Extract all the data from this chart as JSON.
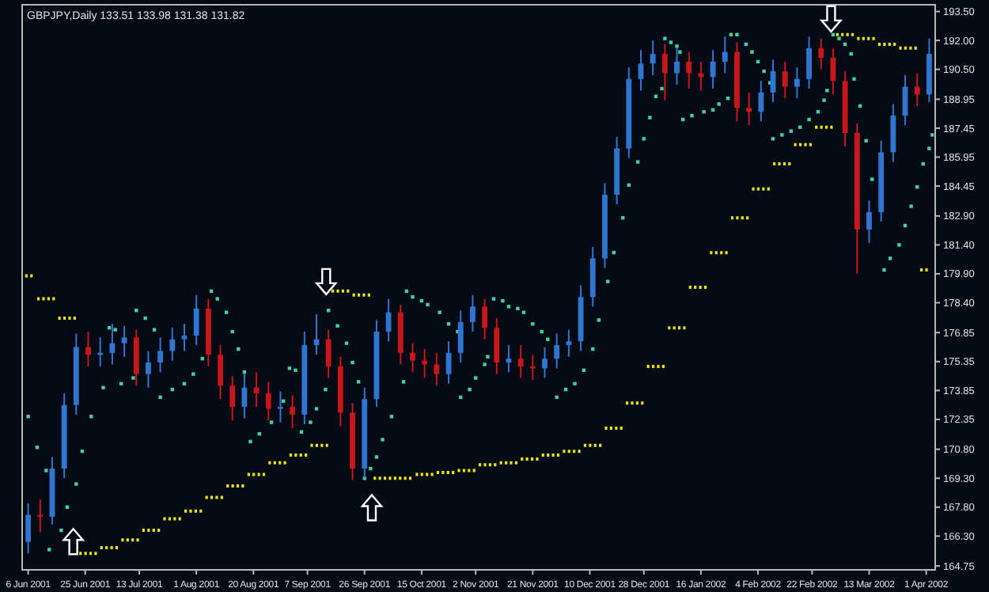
{
  "chart_data": {
    "type": "candlestick",
    "title": "GBPJPY,Daily  133.51 133.98 131.38 131.82",
    "colors": [
      "#2f76d2",
      "#c8161a",
      "#2f76d2",
      "#2f76d2",
      "#2f76d2",
      "#c8161a",
      "#2f76d2",
      "#2f76d2",
      "#2f76d2",
      "#c8161a",
      "#2f76d2",
      "#2f76d2",
      "#2f76d2",
      "#2f76d2",
      "#2f76d2",
      "#c8161a",
      "#c8161a",
      "#c8161a",
      "#2f76d2",
      "#c8161a",
      "#c8161a",
      "#2f76d2",
      "#c8161a",
      "#2f76d2",
      "#2f76d2",
      "#c8161a",
      "#c8161a",
      "#c8161a",
      "#2f76d2",
      "#2f76d2",
      "#2f76d2",
      "#c8161a",
      "#c8161a",
      "#c8161a",
      "#c8161a",
      "#2f76d2",
      "#2f76d2",
      "#2f76d2",
      "#c8161a",
      "#c8161a",
      "#2f76d2",
      "#c8161a",
      "#c8161a",
      "#2f76d2",
      "#2f76d2",
      "#2f76d2",
      "#2f76d2",
      "#2f76d2",
      "#2f76d2",
      "#2f76d2",
      "#2f76d2",
      "#2f76d2",
      "#2f76d2",
      "#c8161a",
      "#2f76d2",
      "#c8161a",
      "#c8161a",
      "#2f76d2",
      "#2f76d2",
      "#c8161a",
      "#c8161a",
      "#2f76d2",
      "#2f76d2",
      "#c8161a",
      "#2f76d2",
      "#2f76d2",
      "#c8161a",
      "#c8161a",
      "#c8161a",
      "#c8161a",
      "#2f76d2",
      "#2f76d2",
      "#2f76d2",
      "#2f76d2",
      "#c8161a",
      "#2f76d2"
    ],
    "x": [
      "2001-06-06",
      "2001-06-10",
      "2001-06-14",
      "2001-06-18",
      "2001-06-22",
      "2001-06-26",
      "2001-06-30",
      "2001-07-04",
      "2001-07-08",
      "2001-07-12",
      "2001-07-16",
      "2001-07-20",
      "2001-07-24",
      "2001-07-28",
      "2001-08-01",
      "2001-08-05",
      "2001-08-09",
      "2001-08-13",
      "2001-08-17",
      "2001-08-21",
      "2001-08-25",
      "2001-08-29",
      "2001-09-02",
      "2001-09-06",
      "2001-09-10",
      "2001-09-14",
      "2001-09-18",
      "2001-09-22",
      "2001-09-26",
      "2001-09-30",
      "2001-10-04",
      "2001-10-08",
      "2001-10-12",
      "2001-10-16",
      "2001-10-20",
      "2001-10-24",
      "2001-10-28",
      "2001-11-01",
      "2001-11-05",
      "2001-11-09",
      "2001-11-13",
      "2001-11-17",
      "2001-11-21",
      "2001-11-25",
      "2001-11-29",
      "2001-12-03",
      "2001-12-07",
      "2001-12-11",
      "2001-12-15",
      "2001-12-19",
      "2001-12-23",
      "2001-12-27",
      "2001-12-31",
      "2002-01-04",
      "2002-01-08",
      "2002-01-12",
      "2002-01-16",
      "2002-01-20",
      "2002-01-24",
      "2002-01-28",
      "2002-02-01",
      "2002-02-05",
      "2002-02-09",
      "2002-02-13",
      "2002-02-17",
      "2002-02-21",
      "2002-02-25",
      "2002-03-01",
      "2002-03-05",
      "2002-03-09",
      "2002-03-13",
      "2002-03-17",
      "2002-03-21",
      "2002-03-25",
      "2002-03-29",
      "2002-04-02"
    ],
    "ohlc": [
      [
        166.0,
        168.0,
        165.4,
        167.4
      ],
      [
        167.4,
        168.2,
        166.5,
        167.3
      ],
      [
        167.3,
        170.4,
        166.9,
        169.8
      ],
      [
        169.8,
        173.7,
        169.3,
        173.1
      ],
      [
        173.1,
        176.8,
        172.6,
        176.1
      ],
      [
        176.1,
        176.9,
        175.1,
        175.7
      ],
      [
        175.7,
        176.6,
        175.1,
        175.8
      ],
      [
        175.8,
        177.3,
        175.2,
        176.3
      ],
      [
        176.3,
        177.2,
        175.6,
        176.6
      ],
      [
        176.6,
        177.0,
        174.1,
        174.7
      ],
      [
        174.7,
        175.9,
        174.0,
        175.3
      ],
      [
        175.3,
        176.6,
        174.8,
        175.9
      ],
      [
        175.9,
        177.1,
        175.4,
        176.5
      ],
      [
        176.5,
        177.3,
        175.9,
        176.7
      ],
      [
        176.7,
        178.8,
        176.2,
        178.1
      ],
      [
        178.1,
        178.6,
        175.1,
        175.7
      ],
      [
        175.7,
        176.2,
        173.4,
        174.1
      ],
      [
        174.1,
        174.6,
        172.3,
        173.0
      ],
      [
        173.0,
        174.7,
        172.4,
        174.0
      ],
      [
        174.0,
        174.8,
        173.0,
        173.7
      ],
      [
        173.7,
        174.3,
        172.3,
        172.9
      ],
      [
        172.9,
        173.8,
        172.2,
        173.0
      ],
      [
        173.0,
        173.6,
        171.9,
        172.6
      ],
      [
        172.6,
        176.9,
        172.1,
        176.2
      ],
      [
        176.2,
        177.8,
        175.7,
        176.5
      ],
      [
        176.5,
        177.0,
        174.5,
        175.1
      ],
      [
        175.1,
        175.6,
        172.0,
        172.7
      ],
      [
        172.7,
        173.2,
        169.2,
        169.8
      ],
      [
        169.8,
        174.0,
        169.3,
        173.4
      ],
      [
        173.4,
        177.5,
        173.0,
        176.9
      ],
      [
        176.9,
        178.6,
        176.4,
        177.9
      ],
      [
        177.9,
        178.3,
        175.2,
        175.8
      ],
      [
        175.8,
        176.3,
        174.8,
        175.4
      ],
      [
        175.4,
        176.0,
        174.5,
        175.2
      ],
      [
        175.2,
        175.8,
        174.1,
        174.7
      ],
      [
        174.7,
        176.4,
        174.2,
        175.8
      ],
      [
        175.8,
        178.0,
        175.3,
        177.4
      ],
      [
        177.4,
        178.8,
        176.9,
        178.2
      ],
      [
        178.2,
        178.6,
        176.5,
        177.1
      ],
      [
        177.1,
        177.6,
        174.7,
        175.3
      ],
      [
        175.3,
        176.2,
        174.8,
        175.5
      ],
      [
        175.5,
        176.2,
        174.5,
        175.1
      ],
      [
        175.1,
        175.7,
        174.4,
        175.0
      ],
      [
        175.0,
        176.1,
        174.5,
        175.5
      ],
      [
        175.5,
        176.8,
        175.0,
        176.2
      ],
      [
        176.2,
        177.0,
        175.6,
        176.4
      ],
      [
        176.4,
        179.3,
        175.9,
        178.7
      ],
      [
        178.7,
        181.3,
        178.2,
        180.7
      ],
      [
        180.7,
        184.6,
        180.2,
        184.0
      ],
      [
        184.0,
        187.0,
        183.5,
        186.4
      ],
      [
        186.4,
        190.6,
        185.9,
        190.0
      ],
      [
        190.0,
        191.5,
        189.4,
        190.8
      ],
      [
        190.8,
        192.0,
        190.2,
        191.3
      ],
      [
        191.3,
        191.8,
        188.9,
        190.3
      ],
      [
        190.3,
        191.6,
        189.7,
        190.9
      ],
      [
        190.9,
        191.4,
        189.5,
        190.3
      ],
      [
        190.3,
        190.9,
        189.4,
        190.1
      ],
      [
        190.1,
        191.5,
        189.5,
        190.9
      ],
      [
        190.9,
        192.2,
        190.3,
        191.4
      ],
      [
        191.4,
        191.9,
        187.8,
        188.5
      ],
      [
        188.5,
        189.3,
        187.6,
        188.3
      ],
      [
        188.3,
        189.9,
        187.8,
        189.3
      ],
      [
        189.3,
        191.0,
        188.8,
        190.4
      ],
      [
        190.4,
        190.9,
        189.0,
        189.6
      ],
      [
        189.6,
        190.6,
        189.0,
        190.0
      ],
      [
        190.0,
        192.2,
        189.5,
        191.6
      ],
      [
        191.6,
        192.1,
        190.5,
        191.1
      ],
      [
        191.1,
        191.6,
        189.2,
        189.9
      ],
      [
        189.9,
        190.4,
        186.5,
        187.2
      ],
      [
        187.2,
        187.7,
        179.9,
        182.2
      ],
      [
        182.2,
        183.7,
        181.5,
        183.1
      ],
      [
        183.1,
        186.8,
        182.6,
        186.2
      ],
      [
        186.2,
        188.7,
        185.7,
        188.1
      ],
      [
        188.1,
        190.2,
        187.6,
        189.6
      ],
      [
        189.6,
        190.3,
        188.6,
        189.2
      ],
      [
        189.2,
        192.1,
        188.8,
        191.3
      ]
    ],
    "series": [
      {
        "type": "scatter",
        "color": "#3fd2a0",
        "marker": "square",
        "x": [
          "2001-06-06",
          "2001-06-09",
          "2001-06-12",
          "2001-06-13",
          "2001-06-17",
          "2001-06-19",
          "2001-06-22",
          "2001-06-24",
          "2001-06-27",
          "2001-07-01",
          "2001-07-03",
          "2001-07-05",
          "2001-07-07",
          "2001-07-11",
          "2001-07-12",
          "2001-07-15",
          "2001-07-18",
          "2001-07-20",
          "2001-07-24",
          "2001-07-28",
          "2001-07-31",
          "2001-08-03",
          "2001-08-06",
          "2001-08-08",
          "2001-08-11",
          "2001-08-13",
          "2001-08-15",
          "2001-08-17",
          "2001-08-19",
          "2001-08-22",
          "2001-08-26",
          "2001-08-30",
          "2001-09-01",
          "2001-09-03",
          "2001-09-05",
          "2001-09-08",
          "2001-09-10",
          "2001-09-13",
          "2001-09-14",
          "2001-09-17",
          "2001-09-20",
          "2001-09-22",
          "2001-09-24",
          "2001-09-26",
          "2001-09-28",
          "2001-09-30",
          "2001-10-02",
          "2001-10-05",
          "2001-10-09",
          "2001-10-10",
          "2001-10-12",
          "2001-10-15",
          "2001-10-17",
          "2001-10-21",
          "2001-10-24",
          "2001-10-27",
          "2001-10-28",
          "2001-10-31",
          "2001-11-02",
          "2001-11-05",
          "2001-11-06",
          "2001-11-08",
          "2001-11-11",
          "2001-11-13",
          "2001-11-16",
          "2001-11-18",
          "2001-11-21",
          "2001-11-24",
          "2001-11-26",
          "2001-11-29",
          "2001-12-02",
          "2001-12-05",
          "2001-12-08",
          "2001-12-11",
          "2001-12-13",
          "2001-12-16",
          "2001-12-18",
          "2001-12-21",
          "2001-12-23",
          "2001-12-26",
          "2001-12-28",
          "2001-12-30",
          "2002-01-01",
          "2002-01-03",
          "2002-01-04",
          "2002-01-06",
          "2002-01-08",
          "2002-01-09",
          "2002-01-10",
          "2002-01-13",
          "2002-01-17",
          "2002-01-20",
          "2002-01-22",
          "2002-01-25",
          "2002-01-26",
          "2002-01-28",
          "2002-01-31",
          "2002-02-02",
          "2002-02-04",
          "2002-02-06",
          "2002-02-08",
          "2002-02-09",
          "2002-02-12",
          "2002-02-15",
          "2002-02-18",
          "2002-02-21",
          "2002-02-24",
          "2002-02-26",
          "2002-02-27",
          "2002-03-01",
          "2002-03-03",
          "2002-03-05",
          "2002-03-07",
          "2002-03-08",
          "2002-03-10",
          "2002-03-12",
          "2002-03-14",
          "2002-03-18",
          "2002-03-20",
          "2002-03-23",
          "2002-03-25",
          "2002-03-27",
          "2002-03-29",
          "2002-03-31",
          "2002-04-02",
          "2002-04-03"
        ],
        "values": [
          172.5,
          170.9,
          169.7,
          165.6,
          166.6,
          167.8,
          169.0,
          170.7,
          172.5,
          174.0,
          177.1,
          177.0,
          174.2,
          174.5,
          178.0,
          177.6,
          177.0,
          173.5,
          173.9,
          174.2,
          174.7,
          175.5,
          179.0,
          178.6,
          177.9,
          176.9,
          176.0,
          174.8,
          171.2,
          171.6,
          172.2,
          173.3,
          175.0,
          174.9,
          171.7,
          172.2,
          172.9,
          173.9,
          178.0,
          177.2,
          176.3,
          175.3,
          174.3,
          169.3,
          169.8,
          170.4,
          171.3,
          172.5,
          174.3,
          179.0,
          178.7,
          178.5,
          178.3,
          177.9,
          177.3,
          176.9,
          173.5,
          173.9,
          174.5,
          175.2,
          175.6,
          178.6,
          178.5,
          178.2,
          178.1,
          177.9,
          177.3,
          176.9,
          176.5,
          173.5,
          173.9,
          174.2,
          174.9,
          176.0,
          177.5,
          179.5,
          181.0,
          182.8,
          184.5,
          185.7,
          186.9,
          188.0,
          189.1,
          189.5,
          192.1,
          191.9,
          191.7,
          191.4,
          187.9,
          188.1,
          188.3,
          188.4,
          188.7,
          189.0,
          192.3,
          192.3,
          191.8,
          191.4,
          190.9,
          190.4,
          189.8,
          186.9,
          187.1,
          187.3,
          187.5,
          187.9,
          188.3,
          188.9,
          189.4,
          192.3,
          192.1,
          191.8,
          191.3,
          190.0,
          188.6,
          186.8,
          184.8,
          180.1,
          180.7,
          181.4,
          182.4,
          183.4,
          184.4,
          185.6,
          186.4,
          187.1
        ]
      },
      {
        "type": "line",
        "color": "#e6e600",
        "line_style": "dotted",
        "x": [
          "2001-06-05",
          "2001-06-08"
        ],
        "values": [
          179.8,
          179.8
        ]
      },
      {
        "type": "line",
        "color": "#e6e600",
        "line_style": "dotted",
        "x": [
          "2001-06-09",
          "2001-06-15"
        ],
        "values": [
          178.6,
          178.6
        ]
      },
      {
        "type": "line",
        "color": "#e6e600",
        "line_style": "dotted",
        "x": [
          "2001-06-16",
          "2001-06-22"
        ],
        "values": [
          177.6,
          177.6
        ]
      },
      {
        "type": "line",
        "color": "#e6e600",
        "line_style": "dotted",
        "x": [
          "2001-06-23",
          "2001-06-29"
        ],
        "values": [
          165.4,
          165.4
        ]
      },
      {
        "type": "line",
        "color": "#e6e600",
        "line_style": "dotted",
        "x": [
          "2001-06-30",
          "2001-07-06"
        ],
        "values": [
          165.7,
          165.7
        ]
      },
      {
        "type": "line",
        "color": "#e6e600",
        "line_style": "dotted",
        "x": [
          "2001-07-07",
          "2001-07-13"
        ],
        "values": [
          166.1,
          166.1
        ]
      },
      {
        "type": "line",
        "color": "#e6e600",
        "line_style": "dotted",
        "x": [
          "2001-07-14",
          "2001-07-20"
        ],
        "values": [
          166.6,
          166.6
        ]
      },
      {
        "type": "line",
        "color": "#e6e600",
        "line_style": "dotted",
        "x": [
          "2001-07-21",
          "2001-07-27"
        ],
        "values": [
          167.2,
          167.2
        ]
      },
      {
        "type": "line",
        "color": "#e6e600",
        "line_style": "dotted",
        "x": [
          "2001-07-28",
          "2001-08-03"
        ],
        "values": [
          167.6,
          167.6
        ]
      },
      {
        "type": "line",
        "color": "#e6e600",
        "line_style": "dotted",
        "x": [
          "2001-08-04",
          "2001-08-10"
        ],
        "values": [
          168.3,
          168.3
        ]
      },
      {
        "type": "line",
        "color": "#e6e600",
        "line_style": "dotted",
        "x": [
          "2001-08-11",
          "2001-08-17"
        ],
        "values": [
          168.9,
          168.9
        ]
      },
      {
        "type": "line",
        "color": "#e6e600",
        "line_style": "dotted",
        "x": [
          "2001-08-18",
          "2001-08-24"
        ],
        "values": [
          169.5,
          169.5
        ]
      },
      {
        "type": "line",
        "color": "#e6e600",
        "line_style": "dotted",
        "x": [
          "2001-08-25",
          "2001-08-31"
        ],
        "values": [
          170.1,
          170.1
        ]
      },
      {
        "type": "line",
        "color": "#e6e600",
        "line_style": "dotted",
        "x": [
          "2001-09-01",
          "2001-09-07"
        ],
        "values": [
          170.5,
          170.5
        ]
      },
      {
        "type": "line",
        "color": "#e6e600",
        "line_style": "dotted",
        "x": [
          "2001-09-08",
          "2001-09-14"
        ],
        "values": [
          171.0,
          171.0
        ]
      },
      {
        "type": "line",
        "color": "#e6e600",
        "line_style": "dotted",
        "x": [
          "2001-09-15",
          "2001-09-21"
        ],
        "values": [
          179.0,
          179.0
        ]
      },
      {
        "type": "line",
        "color": "#e6e600",
        "line_style": "dotted",
        "x": [
          "2001-09-22",
          "2001-09-28"
        ],
        "values": [
          178.8,
          178.8
        ]
      },
      {
        "type": "line",
        "color": "#e6e600",
        "line_style": "dotted",
        "x": [
          "2001-09-29",
          "2001-10-12"
        ],
        "values": [
          169.3,
          169.3
        ]
      },
      {
        "type": "line",
        "color": "#e6e600",
        "line_style": "dotted",
        "x": [
          "2001-10-13",
          "2001-10-19"
        ],
        "values": [
          169.5,
          169.5
        ]
      },
      {
        "type": "line",
        "color": "#e6e600",
        "line_style": "dotted",
        "x": [
          "2001-10-20",
          "2001-10-26"
        ],
        "values": [
          169.6,
          169.6
        ]
      },
      {
        "type": "line",
        "color": "#e6e600",
        "line_style": "dotted",
        "x": [
          "2001-10-27",
          "2001-11-02"
        ],
        "values": [
          169.7,
          169.7
        ]
      },
      {
        "type": "line",
        "color": "#e6e600",
        "line_style": "dotted",
        "x": [
          "2001-11-03",
          "2001-11-09"
        ],
        "values": [
          170.0,
          170.0
        ]
      },
      {
        "type": "line",
        "color": "#e6e600",
        "line_style": "dotted",
        "x": [
          "2001-11-10",
          "2001-11-16"
        ],
        "values": [
          170.1,
          170.1
        ]
      },
      {
        "type": "line",
        "color": "#e6e600",
        "line_style": "dotted",
        "x": [
          "2001-11-17",
          "2001-11-23"
        ],
        "values": [
          170.3,
          170.3
        ]
      },
      {
        "type": "line",
        "color": "#e6e600",
        "line_style": "dotted",
        "x": [
          "2001-11-24",
          "2001-11-30"
        ],
        "values": [
          170.5,
          170.5
        ]
      },
      {
        "type": "line",
        "color": "#e6e600",
        "line_style": "dotted",
        "x": [
          "2001-12-01",
          "2001-12-07"
        ],
        "values": [
          170.7,
          170.7
        ]
      },
      {
        "type": "line",
        "color": "#e6e600",
        "line_style": "dotted",
        "x": [
          "2001-12-08",
          "2001-12-14"
        ],
        "values": [
          171.0,
          171.0
        ]
      },
      {
        "type": "line",
        "color": "#e6e600",
        "line_style": "dotted",
        "x": [
          "2001-12-15",
          "2001-12-21"
        ],
        "values": [
          171.9,
          171.9
        ]
      },
      {
        "type": "line",
        "color": "#e6e600",
        "line_style": "dotted",
        "x": [
          "2001-12-22",
          "2001-12-28"
        ],
        "values": [
          173.2,
          173.2
        ]
      },
      {
        "type": "line",
        "color": "#e6e600",
        "line_style": "dotted",
        "x": [
          "2001-12-29",
          "2002-01-04"
        ],
        "values": [
          175.1,
          175.1
        ]
      },
      {
        "type": "line",
        "color": "#e6e600",
        "line_style": "dotted",
        "x": [
          "2002-01-05",
          "2002-01-11"
        ],
        "values": [
          177.1,
          177.1
        ]
      },
      {
        "type": "line",
        "color": "#e6e600",
        "line_style": "dotted",
        "x": [
          "2002-01-12",
          "2002-01-18"
        ],
        "values": [
          179.2,
          179.2
        ]
      },
      {
        "type": "line",
        "color": "#e6e600",
        "line_style": "dotted",
        "x": [
          "2002-01-19",
          "2002-01-25"
        ],
        "values": [
          181.0,
          181.0
        ]
      },
      {
        "type": "line",
        "color": "#e6e600",
        "line_style": "dotted",
        "x": [
          "2002-01-26",
          "2002-02-01"
        ],
        "values": [
          182.8,
          182.8
        ]
      },
      {
        "type": "line",
        "color": "#e6e600",
        "line_style": "dotted",
        "x": [
          "2002-02-02",
          "2002-02-08"
        ],
        "values": [
          184.3,
          184.3
        ]
      },
      {
        "type": "line",
        "color": "#e6e600",
        "line_style": "dotted",
        "x": [
          "2002-02-09",
          "2002-02-15"
        ],
        "values": [
          185.6,
          185.6
        ]
      },
      {
        "type": "line",
        "color": "#e6e600",
        "line_style": "dotted",
        "x": [
          "2002-02-16",
          "2002-02-22"
        ],
        "values": [
          186.6,
          186.6
        ]
      },
      {
        "type": "line",
        "color": "#e6e600",
        "line_style": "dotted",
        "x": [
          "2002-02-23",
          "2002-03-01"
        ],
        "values": [
          187.5,
          187.5
        ]
      },
      {
        "type": "line",
        "color": "#e6e600",
        "line_style": "dotted",
        "x": [
          "2002-03-02",
          "2002-03-08"
        ],
        "values": [
          192.3,
          192.3
        ]
      },
      {
        "type": "line",
        "color": "#e6e600",
        "line_style": "dotted",
        "x": [
          "2002-03-09",
          "2002-03-15"
        ],
        "values": [
          192.1,
          192.1
        ]
      },
      {
        "type": "line",
        "color": "#e6e600",
        "line_style": "dotted",
        "x": [
          "2002-03-16",
          "2002-03-22"
        ],
        "values": [
          191.8,
          191.8
        ]
      },
      {
        "type": "line",
        "color": "#e6e600",
        "line_style": "dotted",
        "x": [
          "2002-03-23",
          "2002-03-29"
        ],
        "values": [
          191.6,
          191.6
        ]
      },
      {
        "type": "line",
        "color": "#e6e600",
        "line_style": "dotted",
        "x": [
          "2002-03-30",
          "2002-04-02"
        ],
        "values": [
          180.1,
          180.1
        ]
      }
    ],
    "xlim": [
      "2001-06-04",
      "2002-04-04"
    ],
    "xticks": [
      {
        "value": "2001-06-06",
        "label": "6 Jun 2001"
      },
      {
        "value": "2001-06-25",
        "label": "25 Jun 2001"
      },
      {
        "value": "2001-07-13",
        "label": "13 Jul 2001"
      },
      {
        "value": "2001-08-01",
        "label": "1 Aug 2001"
      },
      {
        "value": "2001-08-20",
        "label": "20 Aug 2001"
      },
      {
        "value": "2001-09-07",
        "label": "7 Sep 2001"
      },
      {
        "value": "2001-09-26",
        "label": "26 Sep 2001"
      },
      {
        "value": "2001-10-15",
        "label": "15 Oct 2001"
      },
      {
        "value": "2001-11-02",
        "label": "2 Nov 2001"
      },
      {
        "value": "2001-11-21",
        "label": "21 Nov 2001"
      },
      {
        "value": "2001-12-10",
        "label": "10 Dec 2001"
      },
      {
        "value": "2001-12-28",
        "label": "28 Dec 2001"
      },
      {
        "value": "2002-01-16",
        "label": "16 Jan 2002"
      },
      {
        "value": "2002-02-04",
        "label": "4 Feb 2002"
      },
      {
        "value": "2002-02-22",
        "label": "22 Feb 2002"
      },
      {
        "value": "2002-03-13",
        "label": "13 Mar 2002"
      },
      {
        "value": "2002-04-01",
        "label": "1 Apr 2002"
      }
    ],
    "ylim": [
      164.55,
      193.85
    ],
    "yticks": [
      {
        "value": 193.5,
        "label": "193.50"
      },
      {
        "value": 192,
        "label": "192.00"
      },
      {
        "value": 190.5,
        "label": "190.50"
      },
      {
        "value": 188.95,
        "label": "188.95"
      },
      {
        "value": 187.45,
        "label": "187.45"
      },
      {
        "value": 185.95,
        "label": "185.95"
      },
      {
        "value": 184.45,
        "label": "184.45"
      },
      {
        "value": 182.9,
        "label": "182.90"
      },
      {
        "value": 181.4,
        "label": "181.40"
      },
      {
        "value": 179.9,
        "label": "179.90"
      },
      {
        "value": 178.4,
        "label": "178.40"
      },
      {
        "value": 176.85,
        "label": "176.85"
      },
      {
        "value": 175.35,
        "label": "175.35"
      },
      {
        "value": 173.85,
        "label": "173.85"
      },
      {
        "value": 172.35,
        "label": "172.35"
      },
      {
        "value": 170.8,
        "label": "170.80"
      },
      {
        "value": 169.3,
        "label": "169.30"
      },
      {
        "value": 167.8,
        "label": "167.80"
      },
      {
        "value": 166.3,
        "label": "166.30"
      },
      {
        "value": 164.75,
        "label": "164.75"
      }
    ]
  }
}
